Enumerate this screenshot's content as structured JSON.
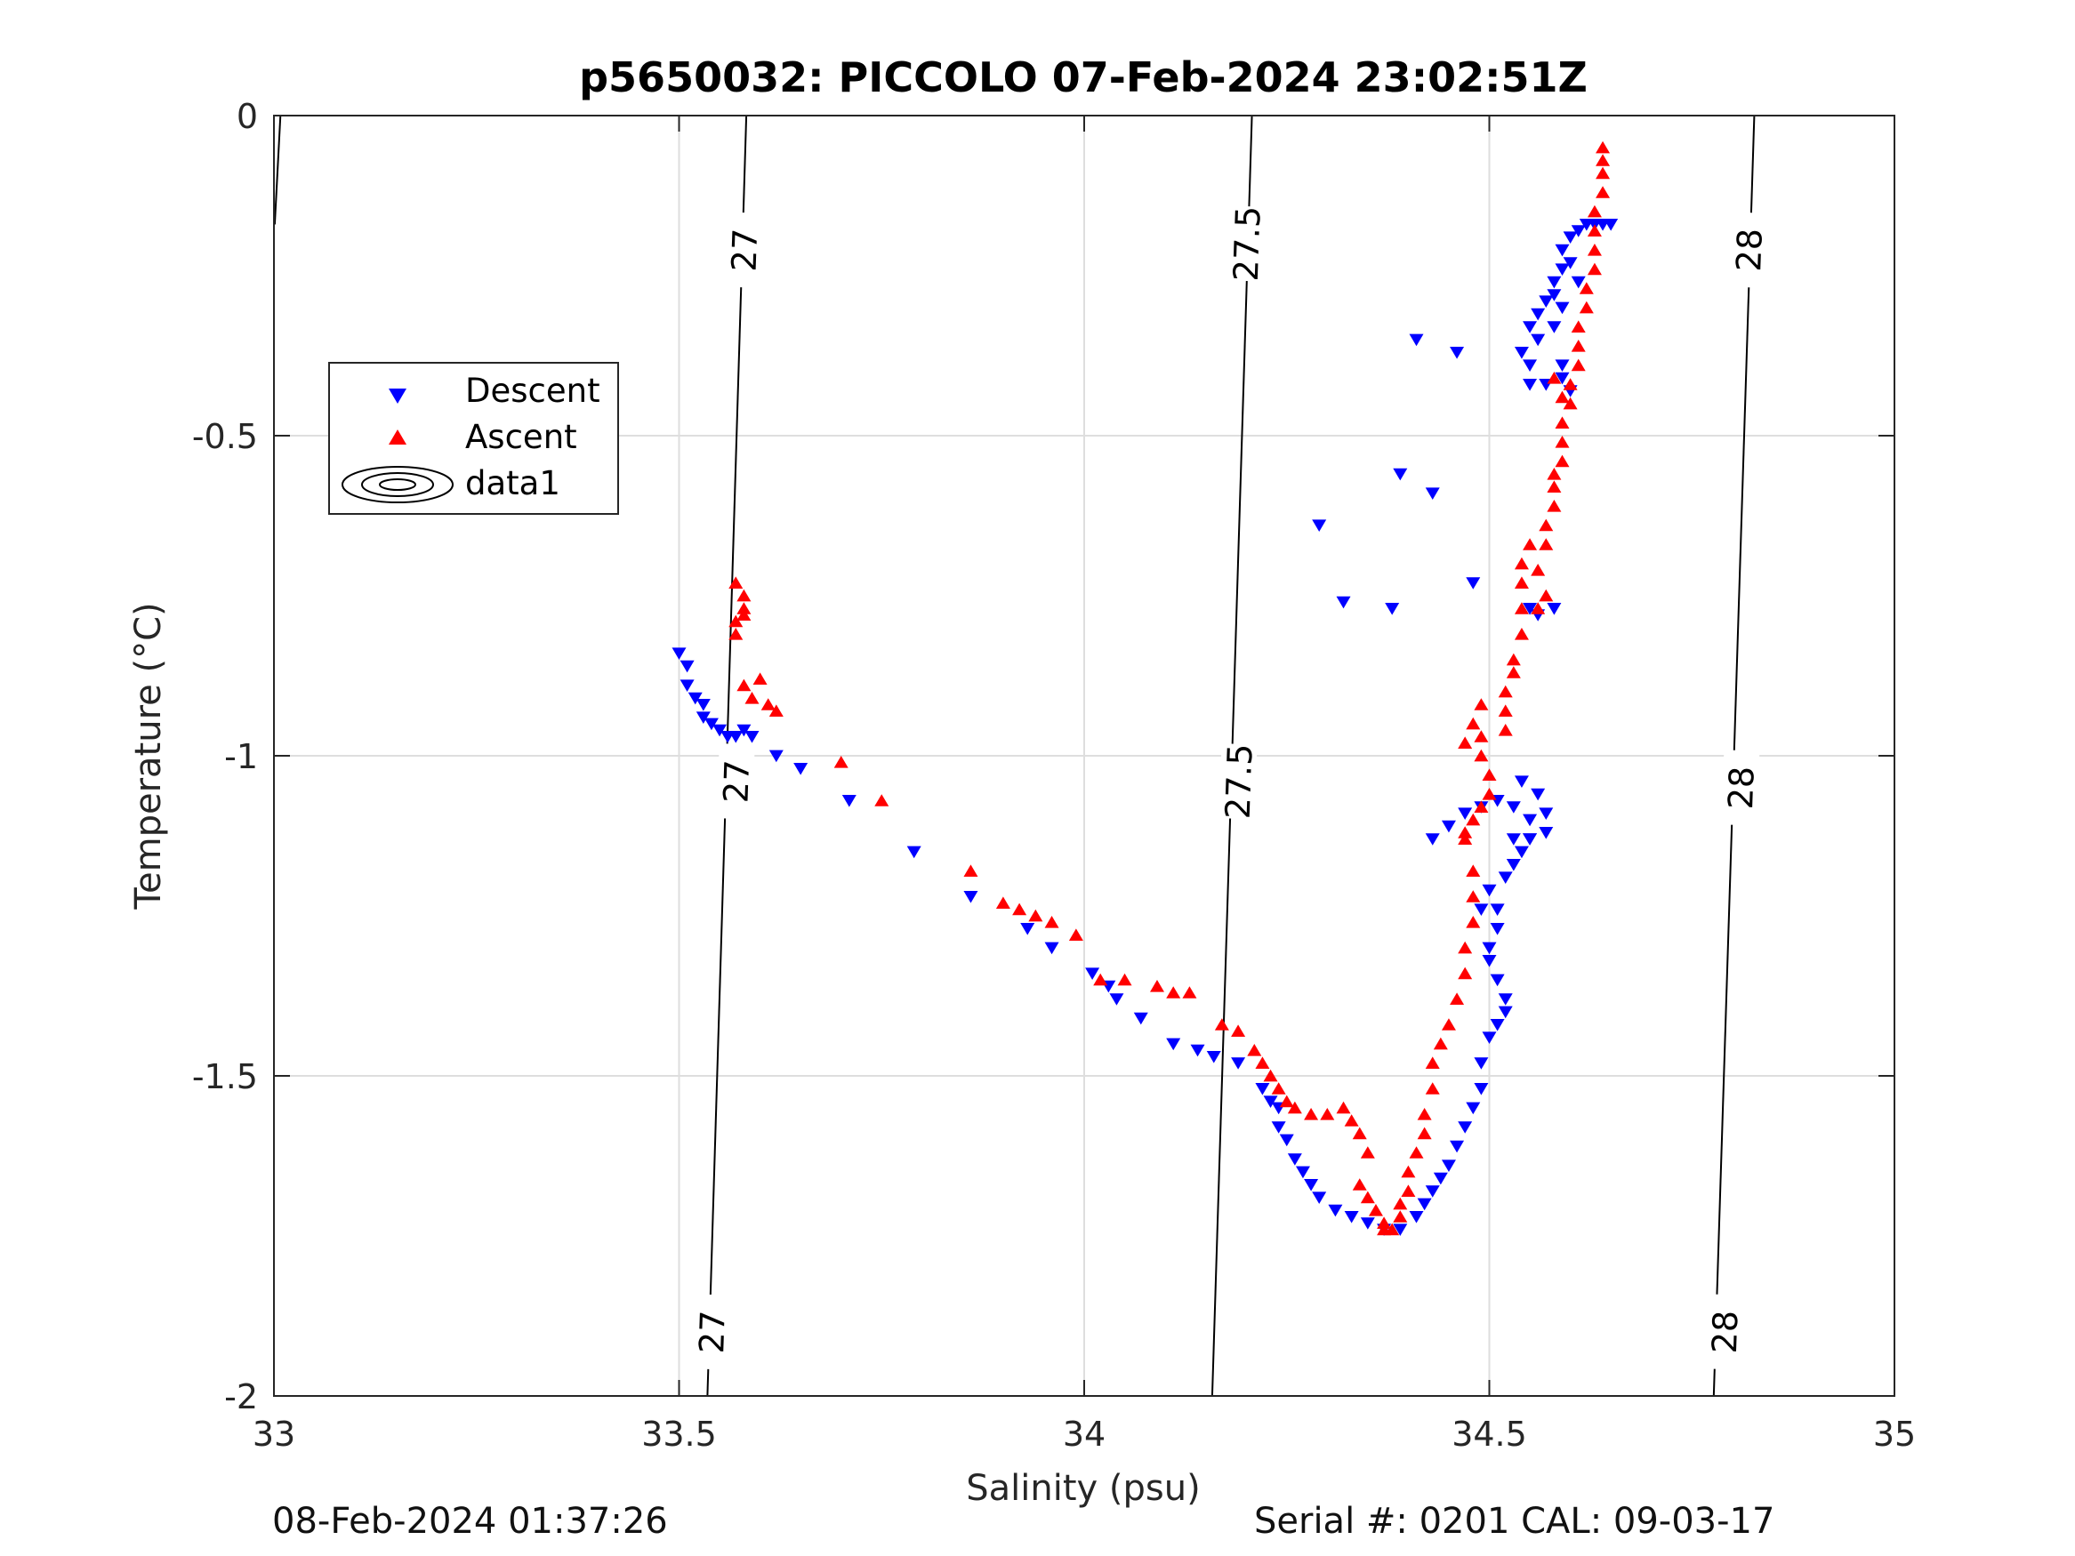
{
  "chart_data": {
    "type": "scatter",
    "title": "p5650032: PICCOLO 07-Feb-2024 23:02:51Z",
    "xlabel": "Salinity (psu)",
    "ylabel": "Temperature (°C)",
    "xlim": [
      33,
      35
    ],
    "ylim": [
      -2,
      0
    ],
    "xticks": [
      "33",
      "33.5",
      "34",
      "34.5",
      "35"
    ],
    "yticks": [
      "-2",
      "-1.5",
      "-1",
      "-0.5",
      "0"
    ],
    "grid": true,
    "legend_position": "upper-left",
    "series": [
      {
        "name": "Descent",
        "color": "#0000ff",
        "marker": "triangle-down",
        "points": [
          [
            33.5,
            -0.84
          ],
          [
            33.51,
            -0.86
          ],
          [
            33.51,
            -0.89
          ],
          [
            33.52,
            -0.91
          ],
          [
            33.53,
            -0.92
          ],
          [
            33.53,
            -0.94
          ],
          [
            33.54,
            -0.95
          ],
          [
            33.55,
            -0.96
          ],
          [
            33.56,
            -0.97
          ],
          [
            33.57,
            -0.97
          ],
          [
            33.58,
            -0.96
          ],
          [
            33.59,
            -0.97
          ],
          [
            33.62,
            -1.0
          ],
          [
            33.65,
            -1.02
          ],
          [
            33.71,
            -1.07
          ],
          [
            33.79,
            -1.15
          ],
          [
            33.86,
            -1.22
          ],
          [
            33.93,
            -1.27
          ],
          [
            33.96,
            -1.3
          ],
          [
            34.01,
            -1.34
          ],
          [
            34.03,
            -1.36
          ],
          [
            34.04,
            -1.38
          ],
          [
            34.07,
            -1.41
          ],
          [
            34.11,
            -1.45
          ],
          [
            34.14,
            -1.46
          ],
          [
            34.16,
            -1.47
          ],
          [
            34.19,
            -1.48
          ],
          [
            34.22,
            -1.52
          ],
          [
            34.23,
            -1.54
          ],
          [
            34.24,
            -1.55
          ],
          [
            34.24,
            -1.58
          ],
          [
            34.25,
            -1.6
          ],
          [
            34.26,
            -1.63
          ],
          [
            34.27,
            -1.65
          ],
          [
            34.28,
            -1.67
          ],
          [
            34.29,
            -1.69
          ],
          [
            34.31,
            -1.71
          ],
          [
            34.33,
            -1.72
          ],
          [
            34.35,
            -1.73
          ],
          [
            34.37,
            -1.74
          ],
          [
            34.39,
            -1.74
          ],
          [
            34.41,
            -1.72
          ],
          [
            34.42,
            -1.7
          ],
          [
            34.43,
            -1.68
          ],
          [
            34.44,
            -1.66
          ],
          [
            34.45,
            -1.64
          ],
          [
            34.46,
            -1.61
          ],
          [
            34.47,
            -1.58
          ],
          [
            34.48,
            -1.55
          ],
          [
            34.49,
            -1.52
          ],
          [
            34.49,
            -1.48
          ],
          [
            34.5,
            -1.44
          ],
          [
            34.51,
            -1.42
          ],
          [
            34.52,
            -1.4
          ],
          [
            34.52,
            -1.38
          ],
          [
            34.51,
            -1.35
          ],
          [
            34.5,
            -1.32
          ],
          [
            34.5,
            -1.3
          ],
          [
            34.51,
            -1.27
          ],
          [
            34.51,
            -1.24
          ],
          [
            34.49,
            -1.24
          ],
          [
            34.5,
            -1.21
          ],
          [
            34.52,
            -1.19
          ],
          [
            34.53,
            -1.17
          ],
          [
            34.54,
            -1.15
          ],
          [
            34.55,
            -1.13
          ],
          [
            34.55,
            -1.1
          ],
          [
            34.53,
            -1.08
          ],
          [
            34.51,
            -1.07
          ],
          [
            34.49,
            -1.08
          ],
          [
            34.47,
            -1.09
          ],
          [
            34.45,
            -1.11
          ],
          [
            34.43,
            -1.13
          ],
          [
            34.54,
            -1.04
          ],
          [
            34.56,
            -1.06
          ],
          [
            34.57,
            -1.09
          ],
          [
            34.57,
            -1.12
          ],
          [
            34.55,
            -1.13
          ],
          [
            34.53,
            -1.13
          ],
          [
            34.55,
            -0.77
          ],
          [
            34.56,
            -0.78
          ],
          [
            34.58,
            -0.77
          ],
          [
            34.48,
            -0.73
          ],
          [
            34.43,
            -0.59
          ],
          [
            34.39,
            -0.56
          ],
          [
            34.29,
            -0.64
          ],
          [
            34.32,
            -0.76
          ],
          [
            34.38,
            -0.77
          ],
          [
            34.41,
            -0.35
          ],
          [
            34.46,
            -0.37
          ],
          [
            34.54,
            -0.37
          ],
          [
            34.55,
            -0.39
          ],
          [
            34.55,
            -0.42
          ],
          [
            34.57,
            -0.42
          ],
          [
            34.59,
            -0.41
          ],
          [
            34.6,
            -0.43
          ],
          [
            34.56,
            -0.35
          ],
          [
            34.55,
            -0.33
          ],
          [
            34.56,
            -0.31
          ],
          [
            34.57,
            -0.29
          ],
          [
            34.58,
            -0.28
          ],
          [
            34.58,
            -0.26
          ],
          [
            34.59,
            -0.24
          ],
          [
            34.59,
            -0.21
          ],
          [
            34.6,
            -0.19
          ],
          [
            34.61,
            -0.18
          ],
          [
            34.62,
            -0.17
          ],
          [
            34.63,
            -0.17
          ],
          [
            34.64,
            -0.17
          ],
          [
            34.65,
            -0.17
          ],
          [
            34.6,
            -0.23
          ],
          [
            34.61,
            -0.26
          ],
          [
            34.59,
            -0.3
          ],
          [
            34.58,
            -0.33
          ],
          [
            34.59,
            -0.39
          ]
        ]
      },
      {
        "name": "Ascent",
        "color": "#ff0000",
        "marker": "triangle-up",
        "points": [
          [
            33.57,
            -0.73
          ],
          [
            33.58,
            -0.75
          ],
          [
            33.58,
            -0.77
          ],
          [
            33.57,
            -0.79
          ],
          [
            33.57,
            -0.81
          ],
          [
            33.58,
            -0.78
          ],
          [
            33.58,
            -0.89
          ],
          [
            33.59,
            -0.91
          ],
          [
            33.6,
            -0.88
          ],
          [
            33.61,
            -0.92
          ],
          [
            33.62,
            -0.93
          ],
          [
            33.7,
            -1.01
          ],
          [
            33.75,
            -1.07
          ],
          [
            33.86,
            -1.18
          ],
          [
            33.9,
            -1.23
          ],
          [
            33.92,
            -1.24
          ],
          [
            33.94,
            -1.25
          ],
          [
            33.96,
            -1.26
          ],
          [
            33.99,
            -1.28
          ],
          [
            34.02,
            -1.35
          ],
          [
            34.05,
            -1.35
          ],
          [
            34.09,
            -1.36
          ],
          [
            34.11,
            -1.37
          ],
          [
            34.13,
            -1.37
          ],
          [
            34.17,
            -1.42
          ],
          [
            34.19,
            -1.43
          ],
          [
            34.21,
            -1.46
          ],
          [
            34.22,
            -1.48
          ],
          [
            34.23,
            -1.5
          ],
          [
            34.24,
            -1.52
          ],
          [
            34.25,
            -1.54
          ],
          [
            34.26,
            -1.55
          ],
          [
            34.28,
            -1.56
          ],
          [
            34.3,
            -1.56
          ],
          [
            34.32,
            -1.55
          ],
          [
            34.33,
            -1.57
          ],
          [
            34.34,
            -1.59
          ],
          [
            34.35,
            -1.62
          ],
          [
            34.34,
            -1.67
          ],
          [
            34.35,
            -1.69
          ],
          [
            34.36,
            -1.71
          ],
          [
            34.37,
            -1.73
          ],
          [
            34.37,
            -1.74
          ],
          [
            34.38,
            -1.74
          ],
          [
            34.39,
            -1.72
          ],
          [
            34.39,
            -1.7
          ],
          [
            34.4,
            -1.68
          ],
          [
            34.4,
            -1.65
          ],
          [
            34.41,
            -1.62
          ],
          [
            34.42,
            -1.59
          ],
          [
            34.42,
            -1.56
          ],
          [
            34.43,
            -1.52
          ],
          [
            34.43,
            -1.48
          ],
          [
            34.44,
            -1.45
          ],
          [
            34.45,
            -1.42
          ],
          [
            34.46,
            -1.38
          ],
          [
            34.47,
            -1.34
          ],
          [
            34.47,
            -1.3
          ],
          [
            34.48,
            -1.26
          ],
          [
            34.48,
            -1.22
          ],
          [
            34.48,
            -1.18
          ],
          [
            34.47,
            -1.13
          ],
          [
            34.48,
            -1.1
          ],
          [
            34.47,
            -1.12
          ],
          [
            34.49,
            -1.08
          ],
          [
            34.5,
            -1.06
          ],
          [
            34.5,
            -1.03
          ],
          [
            34.49,
            -1.0
          ],
          [
            34.49,
            -0.97
          ],
          [
            34.48,
            -0.95
          ],
          [
            34.49,
            -0.92
          ],
          [
            34.47,
            -0.98
          ],
          [
            34.52,
            -0.96
          ],
          [
            34.52,
            -0.93
          ],
          [
            34.52,
            -0.9
          ],
          [
            34.53,
            -0.87
          ],
          [
            34.53,
            -0.85
          ],
          [
            34.54,
            -0.81
          ],
          [
            34.54,
            -0.77
          ],
          [
            34.54,
            -0.73
          ],
          [
            34.54,
            -0.7
          ],
          [
            34.55,
            -0.67
          ],
          [
            34.56,
            -0.77
          ],
          [
            34.57,
            -0.75
          ],
          [
            34.56,
            -0.71
          ],
          [
            34.57,
            -0.67
          ],
          [
            34.57,
            -0.64
          ],
          [
            34.58,
            -0.61
          ],
          [
            34.58,
            -0.58
          ],
          [
            34.58,
            -0.56
          ],
          [
            34.59,
            -0.54
          ],
          [
            34.59,
            -0.51
          ],
          [
            34.59,
            -0.48
          ],
          [
            34.6,
            -0.45
          ],
          [
            34.6,
            -0.42
          ],
          [
            34.61,
            -0.39
          ],
          [
            34.61,
            -0.36
          ],
          [
            34.61,
            -0.33
          ],
          [
            34.62,
            -0.3
          ],
          [
            34.62,
            -0.27
          ],
          [
            34.63,
            -0.24
          ],
          [
            34.63,
            -0.21
          ],
          [
            34.63,
            -0.18
          ],
          [
            34.63,
            -0.15
          ],
          [
            34.64,
            -0.12
          ],
          [
            34.64,
            -0.09
          ],
          [
            34.64,
            -0.07
          ],
          [
            34.64,
            -0.05
          ],
          [
            34.59,
            -0.44
          ],
          [
            34.58,
            -0.41
          ]
        ]
      },
      {
        "name": "data1",
        "type": "density-contour",
        "contours": [
          {
            "level": "27",
            "points": [
              [
                33.535,
                -2.0
              ],
              [
                33.583,
                0.0
              ]
            ]
          },
          {
            "level": "27.5",
            "points": [
              [
                34.158,
                -2.0
              ],
              [
                34.207,
                0.0
              ]
            ]
          },
          {
            "level": "28",
            "points": [
              [
                34.777,
                -2.0
              ],
              [
                34.827,
                0.0
              ]
            ]
          },
          {
            "level": "",
            "points": [
              [
                33.001,
                -0.17
              ],
              [
                33.008,
                0.0
              ]
            ]
          }
        ],
        "contour_labels": [
          {
            "text": "27",
            "at": [
              33.58,
              -0.21
            ]
          },
          {
            "text": "27",
            "at": [
              33.57,
              -1.04
            ]
          },
          {
            "text": "27",
            "at": [
              33.54,
              -1.9
            ]
          },
          {
            "text": "27.5",
            "at": [
              34.2,
              -0.2
            ]
          },
          {
            "text": "27.5",
            "at": [
              34.19,
              -1.04
            ]
          },
          {
            "text": "28",
            "at": [
              34.82,
              -0.21
            ]
          },
          {
            "text": "28",
            "at": [
              34.81,
              -1.05
            ]
          },
          {
            "text": "28",
            "at": [
              34.79,
              -1.9
            ]
          }
        ]
      }
    ]
  },
  "footer": {
    "left": "08-Feb-2024 01:37:26",
    "right": "Serial #: 0201  CAL: 09-03-17"
  }
}
